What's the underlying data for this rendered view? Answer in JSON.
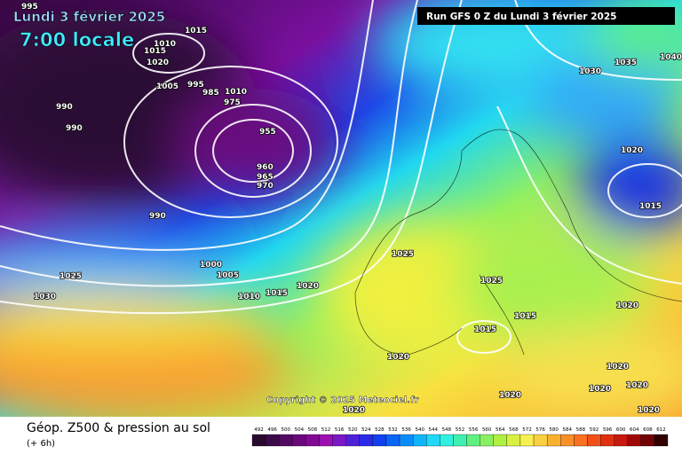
{
  "header": {
    "date": "Lundi 3 février 2025",
    "time": "7:00 locale",
    "run": "Run GFS 0 Z du Lundi 3 février 2025"
  },
  "isobar_labels": [
    "995",
    "1015",
    "1010",
    "1015",
    "1020",
    "1005",
    "995",
    "985",
    "1010",
    "975",
    "990",
    "990",
    "955",
    "960",
    "965",
    "970",
    "990",
    "1000",
    "1005",
    "1025",
    "1030",
    "1010",
    "1015",
    "1020",
    "1025",
    "1025",
    "1015",
    "1015",
    "1020",
    "1020",
    "1020",
    "1020",
    "1020",
    "1020",
    "1020",
    "1020",
    "1030",
    "1035",
    "1040",
    "1020",
    "1015"
  ],
  "copyright": "Copyright © 2025 Meteociel.fr",
  "footer": {
    "title": "Géop. Z500 & pression au sol",
    "subtitle": "(+ 6h)"
  },
  "legend": {
    "labels": [
      "492",
      "496",
      "500",
      "504",
      "508",
      "512",
      "516",
      "520",
      "524",
      "528",
      "532",
      "536",
      "540",
      "544",
      "548",
      "552",
      "556",
      "560",
      "564",
      "568",
      "572",
      "576",
      "580",
      "584",
      "588",
      "592",
      "596",
      "600",
      "604",
      "608",
      "612"
    ],
    "colors": [
      "#2a0a30",
      "#3c0a48",
      "#520a62",
      "#6a087c",
      "#840896",
      "#9a10b0",
      "#7a18c8",
      "#5020d8",
      "#2a2ae8",
      "#1040f0",
      "#0a64f4",
      "#0a8cf8",
      "#10b4fa",
      "#20d8fa",
      "#30f0e0",
      "#40f0b0",
      "#60f080",
      "#88f060",
      "#b0f040",
      "#d8f040",
      "#f8f050",
      "#f8d040",
      "#f8b030",
      "#f89028",
      "#f87020",
      "#f05018",
      "#e03010",
      "#c81810",
      "#a00808",
      "#700404",
      "#300000"
    ]
  }
}
